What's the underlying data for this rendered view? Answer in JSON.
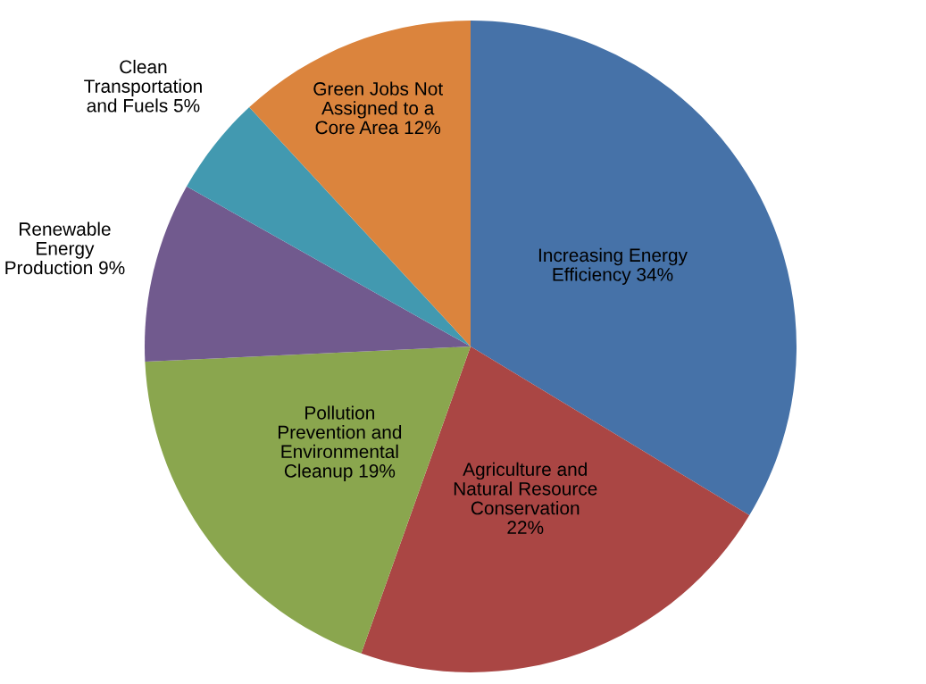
{
  "chart_data": {
    "type": "pie",
    "categories": [
      "Increasing Energy\nEfficiency",
      "Agriculture and\nNatural Resource\nConservation",
      "Pollution\nPrevention and\nEnvironmental\nCleanup",
      "Renewable\nEnergy\nProduction",
      "Clean\nTransportation\nand Fuels",
      "Green Jobs Not\nAssigned to a\nCore Area"
    ],
    "values": [
      34,
      22,
      19,
      9,
      5,
      12
    ],
    "value_labels": [
      "34%",
      "22%",
      "19%",
      "9%",
      "5%",
      "12%"
    ],
    "colors": [
      "#4672a8",
      "#aa4644",
      "#8aa64e",
      "#715a8e",
      "#4299b0",
      "#db843d"
    ]
  }
}
